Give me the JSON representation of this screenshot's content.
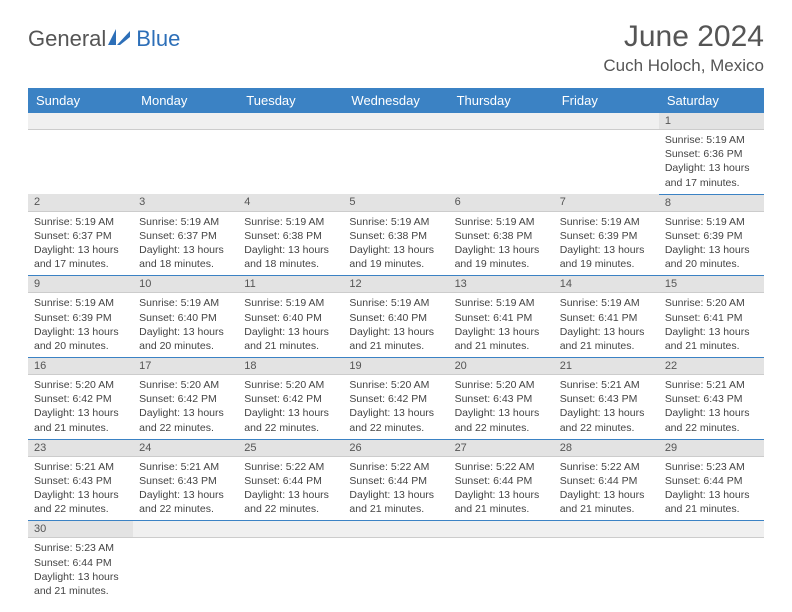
{
  "logo": {
    "part1": "General",
    "part2": "Blue"
  },
  "title": "June 2024",
  "location": "Cuch Holoch, Mexico",
  "colors": {
    "header_bg": "#3b82c4",
    "header_text": "#ffffff",
    "daynum_bg": "#e3e3e3",
    "row_divider": "#3b82c4",
    "logo_gray": "#555555",
    "logo_blue": "#2d6fb8"
  },
  "weekdays": [
    "Sunday",
    "Monday",
    "Tuesday",
    "Wednesday",
    "Thursday",
    "Friday",
    "Saturday"
  ],
  "weeks": [
    [
      null,
      null,
      null,
      null,
      null,
      null,
      {
        "n": "1",
        "sr": "5:19 AM",
        "ss": "6:36 PM",
        "dl": "13 hours and 17 minutes."
      }
    ],
    [
      {
        "n": "2",
        "sr": "5:19 AM",
        "ss": "6:37 PM",
        "dl": "13 hours and 17 minutes."
      },
      {
        "n": "3",
        "sr": "5:19 AM",
        "ss": "6:37 PM",
        "dl": "13 hours and 18 minutes."
      },
      {
        "n": "4",
        "sr": "5:19 AM",
        "ss": "6:38 PM",
        "dl": "13 hours and 18 minutes."
      },
      {
        "n": "5",
        "sr": "5:19 AM",
        "ss": "6:38 PM",
        "dl": "13 hours and 19 minutes."
      },
      {
        "n": "6",
        "sr": "5:19 AM",
        "ss": "6:38 PM",
        "dl": "13 hours and 19 minutes."
      },
      {
        "n": "7",
        "sr": "5:19 AM",
        "ss": "6:39 PM",
        "dl": "13 hours and 19 minutes."
      },
      {
        "n": "8",
        "sr": "5:19 AM",
        "ss": "6:39 PM",
        "dl": "13 hours and 20 minutes."
      }
    ],
    [
      {
        "n": "9",
        "sr": "5:19 AM",
        "ss": "6:39 PM",
        "dl": "13 hours and 20 minutes."
      },
      {
        "n": "10",
        "sr": "5:19 AM",
        "ss": "6:40 PM",
        "dl": "13 hours and 20 minutes."
      },
      {
        "n": "11",
        "sr": "5:19 AM",
        "ss": "6:40 PM",
        "dl": "13 hours and 21 minutes."
      },
      {
        "n": "12",
        "sr": "5:19 AM",
        "ss": "6:40 PM",
        "dl": "13 hours and 21 minutes."
      },
      {
        "n": "13",
        "sr": "5:19 AM",
        "ss": "6:41 PM",
        "dl": "13 hours and 21 minutes."
      },
      {
        "n": "14",
        "sr": "5:19 AM",
        "ss": "6:41 PM",
        "dl": "13 hours and 21 minutes."
      },
      {
        "n": "15",
        "sr": "5:20 AM",
        "ss": "6:41 PM",
        "dl": "13 hours and 21 minutes."
      }
    ],
    [
      {
        "n": "16",
        "sr": "5:20 AM",
        "ss": "6:42 PM",
        "dl": "13 hours and 21 minutes."
      },
      {
        "n": "17",
        "sr": "5:20 AM",
        "ss": "6:42 PM",
        "dl": "13 hours and 22 minutes."
      },
      {
        "n": "18",
        "sr": "5:20 AM",
        "ss": "6:42 PM",
        "dl": "13 hours and 22 minutes."
      },
      {
        "n": "19",
        "sr": "5:20 AM",
        "ss": "6:42 PM",
        "dl": "13 hours and 22 minutes."
      },
      {
        "n": "20",
        "sr": "5:20 AM",
        "ss": "6:43 PM",
        "dl": "13 hours and 22 minutes."
      },
      {
        "n": "21",
        "sr": "5:21 AM",
        "ss": "6:43 PM",
        "dl": "13 hours and 22 minutes."
      },
      {
        "n": "22",
        "sr": "5:21 AM",
        "ss": "6:43 PM",
        "dl": "13 hours and 22 minutes."
      }
    ],
    [
      {
        "n": "23",
        "sr": "5:21 AM",
        "ss": "6:43 PM",
        "dl": "13 hours and 22 minutes."
      },
      {
        "n": "24",
        "sr": "5:21 AM",
        "ss": "6:43 PM",
        "dl": "13 hours and 22 minutes."
      },
      {
        "n": "25",
        "sr": "5:22 AM",
        "ss": "6:44 PM",
        "dl": "13 hours and 22 minutes."
      },
      {
        "n": "26",
        "sr": "5:22 AM",
        "ss": "6:44 PM",
        "dl": "13 hours and 21 minutes."
      },
      {
        "n": "27",
        "sr": "5:22 AM",
        "ss": "6:44 PM",
        "dl": "13 hours and 21 minutes."
      },
      {
        "n": "28",
        "sr": "5:22 AM",
        "ss": "6:44 PM",
        "dl": "13 hours and 21 minutes."
      },
      {
        "n": "29",
        "sr": "5:23 AM",
        "ss": "6:44 PM",
        "dl": "13 hours and 21 minutes."
      }
    ],
    [
      {
        "n": "30",
        "sr": "5:23 AM",
        "ss": "6:44 PM",
        "dl": "13 hours and 21 minutes."
      },
      null,
      null,
      null,
      null,
      null,
      null
    ]
  ],
  "labels": {
    "sunrise": "Sunrise: ",
    "sunset": "Sunset: ",
    "daylight": "Daylight: "
  }
}
